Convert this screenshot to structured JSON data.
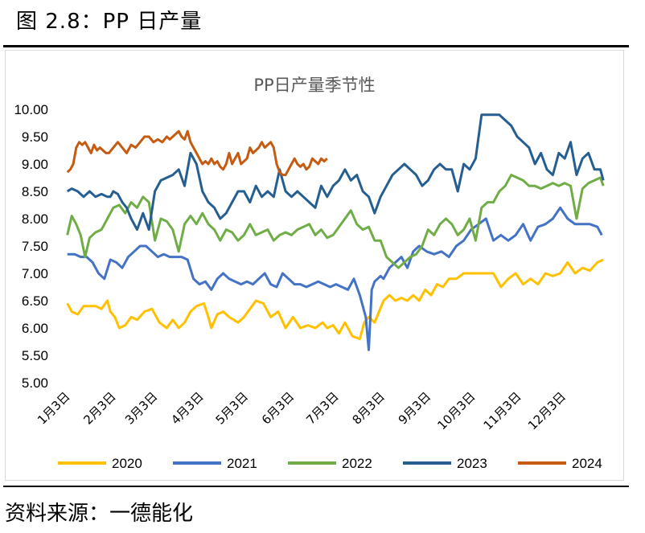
{
  "figure": {
    "heading": "图 2.8：PP 日产量",
    "source": "资料来源：一德能化"
  },
  "chart_data": {
    "type": "line",
    "title": "PP日产量季节性",
    "xlabel": "",
    "ylabel": "",
    "ylim": [
      5.0,
      10.0
    ],
    "yticks": [
      "10.00",
      "9.50",
      "9.00",
      "8.50",
      "8.00",
      "7.50",
      "7.00",
      "6.50",
      "6.00",
      "5.50",
      "5.00"
    ],
    "xlim": [
      1,
      365
    ],
    "xticks": [
      {
        "day": 3,
        "label": "1月3日"
      },
      {
        "day": 34,
        "label": "2月3日"
      },
      {
        "day": 62,
        "label": "3月3日"
      },
      {
        "day": 93,
        "label": "4月3日"
      },
      {
        "day": 123,
        "label": "5月3日"
      },
      {
        "day": 154,
        "label": "6月3日"
      },
      {
        "day": 184,
        "label": "7月3日"
      },
      {
        "day": 215,
        "label": "8月3日"
      },
      {
        "day": 246,
        "label": "9月3日"
      },
      {
        "day": 276,
        "label": "10月3日"
      },
      {
        "day": 307,
        "label": "11月3日"
      },
      {
        "day": 337,
        "label": "12月3日"
      }
    ],
    "legend_position": "bottom",
    "series": [
      {
        "name": "2020",
        "color": "#FFC000",
        "x": [
          3,
          6,
          10,
          14,
          18,
          22,
          26,
          30,
          32,
          35,
          38,
          42,
          46,
          50,
          55,
          60,
          65,
          70,
          74,
          78,
          82,
          86,
          90,
          95,
          98,
          100,
          104,
          108,
          112,
          118,
          122,
          126,
          130,
          135,
          140,
          145,
          150,
          155,
          160,
          165,
          170,
          175,
          178,
          182,
          186,
          190,
          195,
          200,
          203,
          206,
          210,
          213,
          216,
          220,
          224,
          228,
          232,
          236,
          240,
          244,
          248,
          252,
          256,
          260,
          265,
          270,
          275,
          280,
          285,
          290,
          295,
          300,
          305,
          310,
          315,
          320,
          325,
          330,
          335,
          340,
          345,
          350,
          355,
          360,
          364
        ],
        "y": [
          6.45,
          6.3,
          6.25,
          6.4,
          6.4,
          6.4,
          6.35,
          6.5,
          6.3,
          6.2,
          6.0,
          6.05,
          6.2,
          6.15,
          6.3,
          6.35,
          6.1,
          6.0,
          6.15,
          6.0,
          6.1,
          6.3,
          6.4,
          6.45,
          6.2,
          6.0,
          6.25,
          6.3,
          6.2,
          6.1,
          6.2,
          6.35,
          6.5,
          6.45,
          6.2,
          6.3,
          6.0,
          6.2,
          6.0,
          6.05,
          6.0,
          6.1,
          6.0,
          6.05,
          5.9,
          6.1,
          5.85,
          5.8,
          6.1,
          6.2,
          6.1,
          6.3,
          6.5,
          6.6,
          6.5,
          6.55,
          6.5,
          6.6,
          6.5,
          6.7,
          6.6,
          6.8,
          6.75,
          6.9,
          6.9,
          7.0,
          7.0,
          7.0,
          7.0,
          7.0,
          6.75,
          6.9,
          7.0,
          6.8,
          6.9,
          6.8,
          7.0,
          6.95,
          7.0,
          7.2,
          7.0,
          7.1,
          7.05,
          7.2,
          7.25
        ]
      },
      {
        "name": "2021",
        "color": "#4472C4",
        "x": [
          3,
          8,
          12,
          16,
          20,
          24,
          28,
          32,
          36,
          40,
          44,
          48,
          52,
          56,
          60,
          64,
          68,
          72,
          76,
          80,
          84,
          88,
          92,
          96,
          100,
          104,
          108,
          112,
          116,
          120,
          124,
          128,
          132,
          136,
          140,
          144,
          148,
          152,
          156,
          160,
          164,
          168,
          172,
          176,
          180,
          184,
          188,
          192,
          196,
          200,
          204,
          206,
          208,
          210,
          212,
          214,
          216,
          218,
          220,
          224,
          228,
          232,
          236,
          240,
          245,
          250,
          255,
          260,
          265,
          270,
          275,
          280,
          285,
          290,
          295,
          300,
          305,
          310,
          315,
          320,
          325,
          330,
          335,
          340,
          345,
          350,
          355,
          360,
          363
        ],
        "y": [
          7.35,
          7.35,
          7.3,
          7.3,
          7.2,
          7.0,
          6.9,
          7.25,
          7.2,
          7.1,
          7.3,
          7.4,
          7.5,
          7.5,
          7.4,
          7.3,
          7.35,
          7.3,
          7.3,
          7.3,
          7.25,
          6.9,
          6.8,
          6.85,
          6.7,
          6.9,
          7.0,
          6.9,
          6.85,
          6.8,
          6.85,
          6.8,
          6.9,
          7.0,
          6.8,
          6.75,
          7.0,
          6.9,
          6.8,
          6.8,
          6.75,
          6.8,
          6.85,
          6.8,
          6.75,
          6.8,
          6.75,
          6.7,
          6.9,
          6.6,
          6.2,
          5.6,
          6.7,
          6.85,
          6.9,
          6.95,
          6.9,
          7.0,
          7.1,
          7.2,
          7.3,
          7.1,
          7.4,
          7.5,
          7.4,
          7.35,
          7.4,
          7.3,
          7.5,
          7.6,
          7.8,
          7.9,
          8.0,
          7.6,
          7.7,
          7.6,
          7.7,
          7.9,
          7.6,
          7.85,
          7.9,
          8.0,
          8.2,
          8.0,
          7.9,
          7.9,
          7.9,
          7.85,
          7.7
        ]
      },
      {
        "name": "2022",
        "color": "#70AD47",
        "x": [
          3,
          6,
          9,
          12,
          15,
          18,
          22,
          26,
          30,
          34,
          38,
          42,
          46,
          50,
          54,
          58,
          62,
          66,
          70,
          74,
          78,
          82,
          86,
          90,
          94,
          98,
          102,
          106,
          110,
          114,
          118,
          122,
          126,
          130,
          134,
          138,
          142,
          146,
          150,
          154,
          158,
          162,
          166,
          170,
          174,
          178,
          182,
          186,
          190,
          194,
          198,
          202,
          206,
          210,
          214,
          218,
          222,
          226,
          230,
          234,
          238,
          242,
          246,
          250,
          254,
          258,
          262,
          266,
          270,
          274,
          278,
          282,
          286,
          290,
          294,
          298,
          302,
          306,
          310,
          314,
          318,
          322,
          326,
          330,
          334,
          338,
          342,
          346,
          350,
          354,
          358,
          362,
          364
        ],
        "y": [
          7.7,
          8.05,
          7.9,
          7.7,
          7.3,
          7.65,
          7.75,
          7.8,
          8.0,
          8.2,
          8.25,
          8.1,
          8.3,
          8.2,
          8.4,
          8.3,
          7.6,
          8.0,
          7.95,
          7.8,
          7.4,
          7.9,
          8.05,
          7.9,
          8.1,
          7.9,
          7.8,
          7.6,
          7.8,
          7.75,
          7.6,
          7.7,
          7.9,
          7.7,
          7.75,
          7.8,
          7.6,
          7.7,
          7.75,
          7.7,
          7.8,
          7.85,
          7.9,
          7.7,
          7.8,
          7.65,
          7.7,
          7.85,
          8.0,
          8.15,
          7.9,
          7.8,
          7.85,
          7.6,
          7.6,
          7.3,
          7.2,
          7.1,
          7.2,
          7.3,
          7.35,
          7.5,
          7.8,
          7.7,
          7.9,
          8.0,
          7.9,
          7.7,
          7.8,
          8.0,
          7.6,
          8.2,
          8.3,
          8.3,
          8.5,
          8.6,
          8.8,
          8.75,
          8.7,
          8.6,
          8.6,
          8.55,
          8.6,
          8.65,
          8.6,
          8.65,
          8.6,
          8.0,
          8.55,
          8.65,
          8.7,
          8.75,
          8.6
        ]
      },
      {
        "name": "2023",
        "color": "#255E91",
        "x": [
          3,
          6,
          10,
          14,
          18,
          22,
          26,
          30,
          32,
          34,
          37,
          40,
          43,
          46,
          50,
          54,
          58,
          62,
          66,
          70,
          74,
          78,
          82,
          86,
          90,
          94,
          98,
          102,
          106,
          110,
          114,
          118,
          122,
          126,
          130,
          134,
          138,
          142,
          146,
          150,
          154,
          158,
          162,
          166,
          170,
          174,
          178,
          182,
          186,
          190,
          194,
          198,
          202,
          206,
          210,
          214,
          218,
          222,
          226,
          230,
          234,
          238,
          242,
          246,
          250,
          254,
          258,
          262,
          266,
          270,
          274,
          278,
          282,
          286,
          290,
          294,
          298,
          302,
          306,
          310,
          314,
          318,
          322,
          326,
          330,
          334,
          338,
          342,
          346,
          350,
          354,
          358,
          362,
          364
        ],
        "y": [
          8.5,
          8.55,
          8.5,
          8.4,
          8.5,
          8.4,
          8.45,
          8.4,
          8.4,
          8.5,
          8.45,
          8.3,
          8.2,
          8.0,
          7.8,
          8.1,
          7.8,
          8.5,
          8.7,
          8.75,
          8.8,
          8.9,
          8.6,
          9.2,
          9.0,
          8.5,
          8.3,
          8.2,
          8.0,
          8.1,
          8.3,
          8.5,
          8.5,
          8.3,
          8.6,
          8.4,
          8.5,
          8.4,
          8.9,
          8.5,
          8.4,
          8.5,
          8.4,
          8.3,
          8.2,
          8.6,
          8.4,
          8.6,
          8.7,
          8.9,
          8.7,
          8.8,
          8.5,
          8.4,
          8.1,
          8.4,
          8.6,
          8.8,
          8.9,
          9.0,
          8.9,
          8.8,
          8.6,
          8.7,
          8.9,
          9.0,
          8.9,
          8.9,
          8.5,
          9.0,
          8.9,
          9.1,
          9.9,
          9.9,
          9.9,
          9.9,
          9.8,
          9.7,
          9.5,
          9.4,
          9.3,
          9.0,
          9.2,
          8.9,
          8.8,
          9.2,
          9.1,
          9.4,
          8.8,
          9.1,
          9.2,
          8.9,
          8.9,
          8.7
        ]
      },
      {
        "name": "2024",
        "color": "#C55A11",
        "x": [
          3,
          5,
          7,
          9,
          11,
          13,
          15,
          17,
          19,
          21,
          23,
          25,
          27,
          29,
          31,
          34,
          37,
          40,
          43,
          46,
          49,
          52,
          55,
          58,
          61,
          64,
          67,
          70,
          72,
          74,
          76,
          78,
          80,
          82,
          84,
          86,
          88,
          90,
          92,
          94,
          96,
          98,
          100,
          102,
          104,
          106,
          108,
          110,
          112,
          114,
          116,
          118,
          120,
          122,
          124,
          126,
          128,
          130,
          132,
          134,
          136,
          138,
          140,
          142,
          144,
          146,
          148,
          150,
          152,
          154,
          156,
          158,
          160,
          162,
          164,
          166,
          168,
          170,
          172,
          174,
          176,
          178
        ],
        "y": [
          8.85,
          8.9,
          9.0,
          9.3,
          9.4,
          9.35,
          9.4,
          9.3,
          9.2,
          9.35,
          9.25,
          9.3,
          9.25,
          9.2,
          9.2,
          9.3,
          9.4,
          9.3,
          9.2,
          9.35,
          9.3,
          9.4,
          9.5,
          9.5,
          9.4,
          9.45,
          9.4,
          9.5,
          9.45,
          9.5,
          9.55,
          9.6,
          9.5,
          9.45,
          9.6,
          9.4,
          9.3,
          9.2,
          9.1,
          9.0,
          9.05,
          9.0,
          9.1,
          9.0,
          9.05,
          8.95,
          8.9,
          9.0,
          9.2,
          9.0,
          9.1,
          9.2,
          9.0,
          9.05,
          9.1,
          9.3,
          9.2,
          9.25,
          9.3,
          9.4,
          9.3,
          9.35,
          9.4,
          9.3,
          9.0,
          8.85,
          8.8,
          8.8,
          8.9,
          9.0,
          9.1,
          9.0,
          8.95,
          9.0,
          8.9,
          8.95,
          9.1,
          9.05,
          9.0,
          9.1,
          9.05,
          9.1
        ]
      }
    ]
  }
}
